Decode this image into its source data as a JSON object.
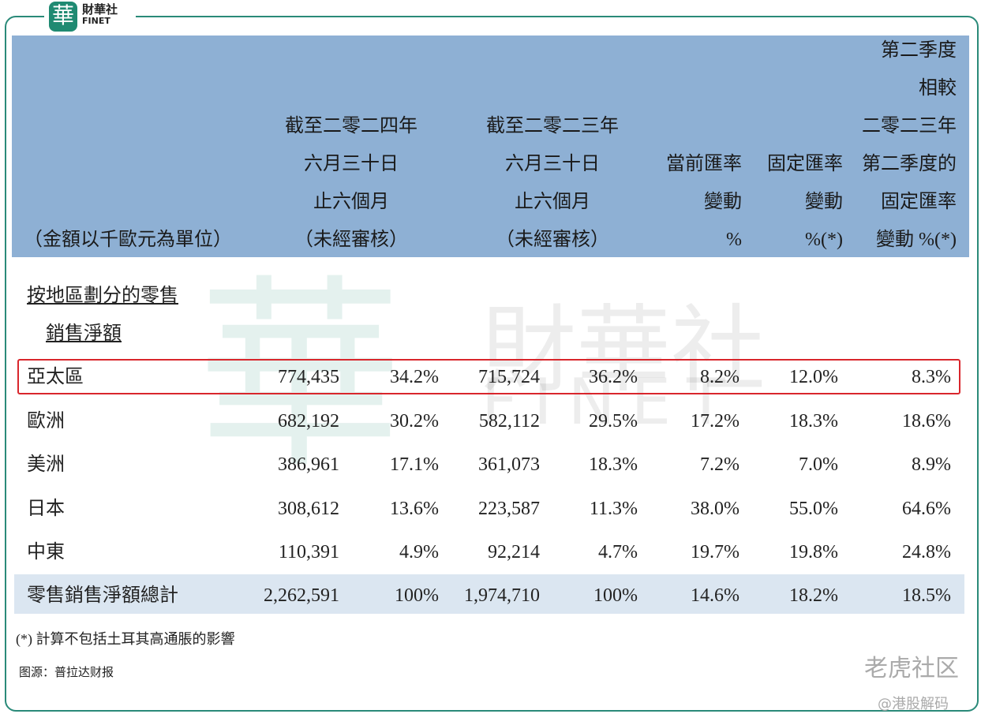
{
  "brand": {
    "mark": "華",
    "name": "財華社",
    "latin": "FINET"
  },
  "watermark": {
    "mark": "華",
    "name": "財華社",
    "latin": "FINET"
  },
  "header": {
    "columns": [
      [
        "（金額以千歐元為單位）"
      ],
      [
        "截至二零二四年",
        "六月三十日",
        "止六個月",
        "（未經審核）"
      ],
      [
        "截至二零二三年",
        "六月三十日",
        "止六個月",
        "（未經審核）"
      ],
      [
        "當前匯率",
        "變動",
        "%"
      ],
      [
        "固定匯率",
        "變動",
        "%(*)"
      ],
      [
        "第二季度",
        "相較",
        "二零二三年",
        "第二季度的",
        "固定匯率",
        "變動 %(*)"
      ]
    ]
  },
  "section": [
    "按地區劃分的零售",
    "銷售淨額"
  ],
  "rows": [
    [
      "亞太區",
      "774,435",
      "34.2%",
      "715,724",
      "36.2%",
      "8.2%",
      "12.0%",
      "8.3%"
    ],
    [
      "歐洲",
      "682,192",
      "30.2%",
      "582,112",
      "29.5%",
      "17.2%",
      "18.3%",
      "18.6%"
    ],
    [
      "美洲",
      "386,961",
      "17.1%",
      "361,073",
      "18.3%",
      "7.2%",
      "7.0%",
      "8.9%"
    ],
    [
      "日本",
      "308,612",
      "13.6%",
      "223,587",
      "11.3%",
      "38.0%",
      "55.0%",
      "64.6%"
    ],
    [
      "中東",
      "110,391",
      "4.9%",
      "92,214",
      "4.7%",
      "19.7%",
      "19.8%",
      "24.8%"
    ]
  ],
  "total": [
    "零售銷售淨額總計",
    "2,262,591",
    "100%",
    "1,974,710",
    "100%",
    "14.6%",
    "18.2%",
    "18.5%"
  ],
  "footnote": "(*) 計算不包括土耳其高通脹的影響",
  "source": "图源：普拉达财报",
  "credits": [
    "老虎社区",
    "@港股解码"
  ]
}
